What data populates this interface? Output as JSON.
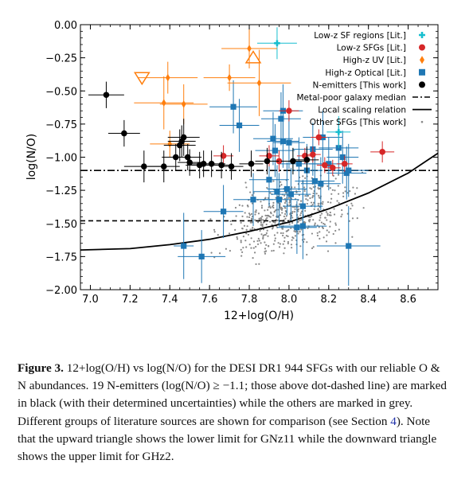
{
  "chart_data": {
    "type": "scatter",
    "xlabel": "12+log(O/H)",
    "ylabel": "log(N/O)",
    "xlim": [
      6.95,
      8.75
    ],
    "ylim": [
      -2.0,
      0.0
    ],
    "xticks": [
      "7.0",
      "7.2",
      "7.4",
      "7.6",
      "7.8",
      "8.0",
      "8.2",
      "8.4",
      "8.6"
    ],
    "yticks": [
      "0.00",
      "−0.25",
      "−0.50",
      "−0.75",
      "−1.00",
      "−1.25",
      "−1.50",
      "−1.75",
      "−2.00"
    ],
    "legend_position": "top-right",
    "legend": [
      {
        "label": "Low-z SF regions [Lit.]",
        "color": "#17becf",
        "marker": "plus"
      },
      {
        "label": "Low-z SFGs [Lit.]",
        "color": "#d62728",
        "marker": "circle"
      },
      {
        "label": "High-z UV [Lit.]",
        "color": "#ff7f0e",
        "marker": "diamond"
      },
      {
        "label": "High-z Optical [Lit.]",
        "color": "#1f77b4",
        "marker": "square"
      },
      {
        "label": "N-emitters [This work]",
        "color": "#000000",
        "marker": "circle"
      },
      {
        "label": "Metal-poor galaxy median",
        "color": "#000000",
        "marker": "dashdot"
      },
      {
        "label": "Local scaling relation",
        "color": "#000000",
        "marker": "solid"
      },
      {
        "label": "Other SFGs [This work]",
        "color": "#888888",
        "marker": "dot"
      }
    ],
    "reference_lines": {
      "dashdot_y": -1.1,
      "dashed_y": -1.48,
      "dashed_x_range": [
        6.95,
        8.0
      ]
    },
    "local_relation": [
      [
        6.95,
        -1.7
      ],
      [
        7.2,
        -1.69
      ],
      [
        7.4,
        -1.66
      ],
      [
        7.6,
        -1.62
      ],
      [
        7.8,
        -1.56
      ],
      [
        8.0,
        -1.49
      ],
      [
        8.2,
        -1.39
      ],
      [
        8.4,
        -1.27
      ],
      [
        8.6,
        -1.12
      ],
      [
        8.75,
        -0.97
      ]
    ],
    "series": [
      {
        "name": "N-emitters [This work]",
        "color": "#000000",
        "points": [
          [
            7.08,
            -0.53,
            0.09,
            0.1
          ],
          [
            7.17,
            -0.82,
            0.08,
            0.1
          ],
          [
            7.27,
            -1.07,
            0.1,
            0.12
          ],
          [
            7.37,
            -1.07,
            0.08,
            0.12
          ],
          [
            7.43,
            -1.0,
            0.07,
            0.1
          ],
          [
            7.45,
            -0.91,
            0.08,
            0.12
          ],
          [
            7.46,
            -0.88,
            0.07,
            0.12
          ],
          [
            7.47,
            -0.85,
            0.08,
            0.14
          ],
          [
            7.49,
            -1.0,
            0.07,
            0.1
          ],
          [
            7.5,
            -1.04,
            0.06,
            0.1
          ],
          [
            7.55,
            -1.06,
            0.07,
            0.1
          ],
          [
            7.57,
            -1.05,
            0.06,
            0.1
          ],
          [
            7.61,
            -1.05,
            0.07,
            0.1
          ],
          [
            7.66,
            -1.06,
            0.06,
            0.1
          ],
          [
            7.71,
            -1.07,
            0.06,
            0.1
          ],
          [
            7.81,
            -1.05,
            0.06,
            0.1
          ],
          [
            7.89,
            -1.03,
            0.06,
            0.1
          ],
          [
            8.02,
            -1.03,
            0.06,
            0.1
          ],
          [
            8.09,
            -1.02,
            0.06,
            0.1
          ]
        ]
      },
      {
        "name": "High-z UV [Lit.]",
        "color": "#ff7f0e",
        "points": [
          [
            7.39,
            -0.4,
            0.15,
            0.12
          ],
          [
            7.37,
            -0.59,
            0.15,
            0.2
          ],
          [
            7.47,
            -0.6,
            0.12,
            0.15
          ],
          [
            7.4,
            -0.9,
            0.1,
            0.1
          ],
          [
            7.7,
            -0.4,
            0.13,
            0.1
          ],
          [
            7.8,
            -0.18,
            0.14,
            0.15
          ],
          [
            7.85,
            -0.44,
            0.16,
            0.25
          ]
        ]
      },
      {
        "name": "High-z Optical [Lit.]",
        "color": "#1f77b4",
        "points": [
          [
            7.47,
            -1.67,
            0.05,
            0.25
          ],
          [
            7.56,
            -1.75,
            0.12,
            0.2
          ],
          [
            7.67,
            -1.41,
            0.1,
            0.2
          ],
          [
            7.72,
            -0.62,
            0.12,
            0.2
          ],
          [
            7.75,
            -0.76,
            0.1,
            0.2
          ],
          [
            7.82,
            -1.32,
            0.1,
            0.2
          ],
          [
            7.9,
            -1.17,
            0.1,
            0.2
          ],
          [
            7.92,
            -0.86,
            0.1,
            0.2
          ],
          [
            7.94,
            -1.26,
            0.12,
            0.2
          ],
          [
            7.95,
            -1.32,
            0.1,
            0.2
          ],
          [
            7.96,
            -0.71,
            0.1,
            0.2
          ],
          [
            7.97,
            -0.65,
            0.1,
            0.2
          ],
          [
            7.97,
            -0.88,
            0.08,
            0.2
          ],
          [
            7.99,
            -1.24,
            0.1,
            0.2
          ],
          [
            8.0,
            -0.89,
            0.08,
            0.2
          ],
          [
            8.01,
            -1.28,
            0.1,
            0.2
          ],
          [
            8.04,
            -1.53,
            0.1,
            0.2
          ],
          [
            8.05,
            -1.05,
            0.1,
            0.2
          ],
          [
            8.07,
            -1.52,
            0.12,
            0.25
          ],
          [
            8.07,
            -1.37,
            0.1,
            0.2
          ],
          [
            8.09,
            -1.1,
            0.08,
            0.2
          ],
          [
            8.12,
            -0.94,
            0.1,
            0.2
          ],
          [
            8.13,
            -1.18,
            0.1,
            0.2
          ],
          [
            8.16,
            -1.2,
            0.1,
            0.2
          ],
          [
            8.2,
            -1.05,
            0.1,
            0.2
          ],
          [
            8.25,
            -0.93,
            0.1,
            0.2
          ],
          [
            8.27,
            -1.0,
            0.08,
            0.2
          ],
          [
            8.29,
            -1.12,
            0.1,
            0.2
          ],
          [
            8.3,
            -1.67,
            0.16,
            0.3
          ],
          [
            8.3,
            -1.1,
            0.1,
            0.2
          ],
          [
            7.93,
            -0.95,
            0.1,
            0.2
          ],
          [
            8.17,
            -0.85,
            0.1,
            0.2
          ]
        ]
      },
      {
        "name": "Low-z SFGs [Lit.]",
        "color": "#d62728",
        "points": [
          [
            7.67,
            -0.99,
            0.05,
            0.08
          ],
          [
            7.9,
            -0.99,
            0.05,
            0.08
          ],
          [
            7.95,
            -1.03,
            0.04,
            0.08
          ],
          [
            8.0,
            -0.65,
            0.05,
            0.08
          ],
          [
            8.08,
            -0.99,
            0.04,
            0.06
          ],
          [
            8.12,
            -0.98,
            0.04,
            0.06
          ],
          [
            8.15,
            -0.85,
            0.04,
            0.06
          ],
          [
            8.18,
            -1.06,
            0.04,
            0.06
          ],
          [
            8.22,
            -1.08,
            0.04,
            0.06
          ],
          [
            8.28,
            -1.05,
            0.04,
            0.06
          ],
          [
            8.47,
            -0.96,
            0.06,
            0.08
          ]
        ]
      },
      {
        "name": "Low-z SF regions [Lit.]",
        "color": "#17becf",
        "points": [
          [
            7.94,
            -0.14,
            0.1,
            0.12
          ],
          [
            8.25,
            -0.81,
            0.06,
            0.12
          ],
          [
            8.02,
            -1.03,
            0.05,
            0.1
          ]
        ]
      }
    ],
    "limits": [
      {
        "label": "GHz2 upper limit",
        "marker": "down-triangle",
        "color": "#ff7f0e",
        "x": 7.26,
        "y": -0.4
      },
      {
        "label": "GNz11 lower limit",
        "marker": "up-triangle",
        "color": "#ff7f0e",
        "x": 7.82,
        "y": -0.25
      }
    ],
    "grey_cloud": {
      "name": "Other SFGs [This work]",
      "count": 944,
      "x_center": 8.0,
      "y_center": -1.45
    }
  },
  "caption": {
    "label": "Figure 3.",
    "text_before_ref": "12+log(O/H) vs log(N/O) for the DESI DR1 944 SFGs with our reliable O & N abundances. 19 N-emitters (log(N/O) ≥ −1.1; those above dot-dashed line) are marked in black (with their determined uncertainties) while the others are marked in grey. Different groups of literature sources are shown for comparison (see Section ",
    "ref": "4",
    "text_after_ref": "). Note that the upward triangle shows the lower limit for GNz11 while the downward triangle shows the upper limit for GHz2."
  },
  "colors": {
    "grey_points": "#888888",
    "axis": "#000000"
  }
}
